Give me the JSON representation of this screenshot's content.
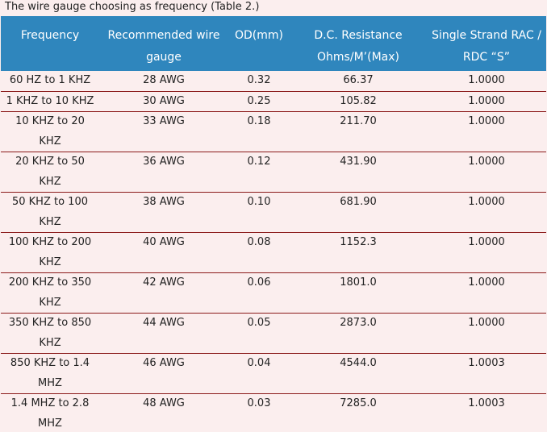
{
  "caption": "The wire gauge choosing as frequency (Table 2.)",
  "colors": {
    "header_bg": "#2f86bd",
    "header_text": "#ffffff",
    "page_bg": "#fbeeee",
    "row_divider": "#8b1a1a"
  },
  "table": {
    "headers": [
      "Frequency",
      "Recommended wire gauge",
      "OD(mm)",
      "D.C. Resistance Ohms/M’(Max)",
      "Single Strand RAC / RDC “S”"
    ],
    "rows": [
      [
        "60 HZ to 1 KHZ",
        "28 AWG",
        "0.32",
        "66.37",
        "1.0000"
      ],
      [
        "1 KHZ to 10 KHZ",
        "30 AWG",
        "0.25",
        "105.82",
        "1.0000"
      ],
      [
        "10 KHZ to 20 KHZ",
        "33 AWG",
        "0.18",
        "211.70",
        "1.0000"
      ],
      [
        "20 KHZ to 50 KHZ",
        "36 AWG",
        "0.12",
        "431.90",
        "1.0000"
      ],
      [
        "50 KHZ to 100 KHZ",
        "38 AWG",
        "0.10",
        "681.90",
        "1.0000"
      ],
      [
        "100 KHZ to 200 KHZ",
        "40 AWG",
        "0.08",
        "1152.3",
        "1.0000"
      ],
      [
        "200 KHZ to 350 KHZ",
        "42 AWG",
        "0.06",
        "1801.0",
        "1.0000"
      ],
      [
        "350 KHZ to 850 KHZ",
        "44 AWG",
        "0.05",
        "2873.0",
        "1.0000"
      ],
      [
        "850 KHZ to 1.4 MHZ",
        "46 AWG",
        "0.04",
        "4544.0",
        "1.0003"
      ],
      [
        "1.4 MHZ to 2.8 MHZ",
        "48 AWG",
        "0.03",
        "7285.0",
        "1.0003"
      ]
    ]
  }
}
